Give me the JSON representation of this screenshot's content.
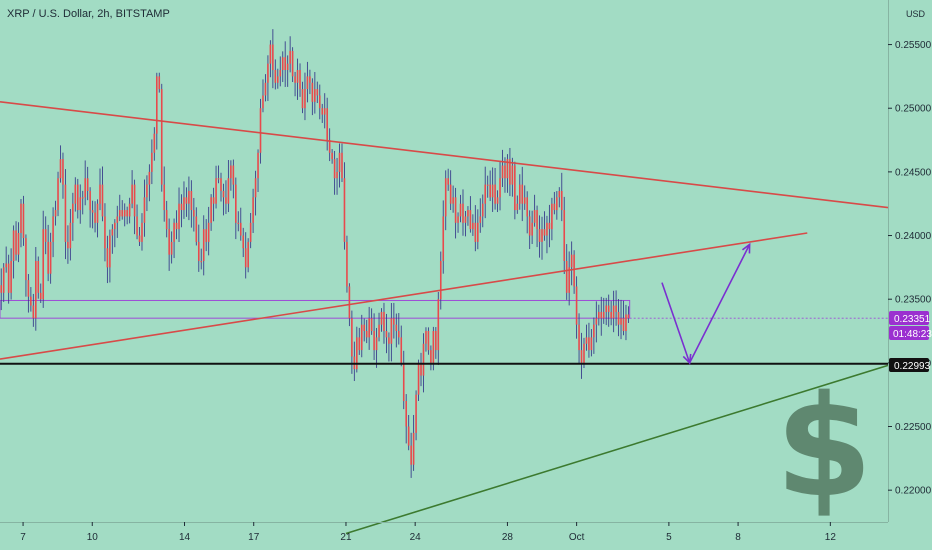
{
  "header": {
    "title": "XRP / U.S. Dollar, 2h, BITSTAMP",
    "currency": "USD"
  },
  "colors": {
    "background": "#a2dcc4",
    "candle": "#e8494c",
    "wick": "#3a3f8c",
    "trendline": "#d84a48",
    "support": "#111111",
    "lower_trend": "#3c7a2f",
    "forecast_arrow": "#7a2fd0",
    "range_box": "#9d4bd6",
    "badge_price": "#9b30d0",
    "badge_level": "#111111",
    "dollar": "#5f8870"
  },
  "icons": {
    "watermark": "dollar-sign-icon"
  },
  "badges": {
    "price": "0.23351",
    "countdown": "01:48:23",
    "level": "0.22993"
  },
  "chart_data": {
    "type": "candlestick",
    "symbol": "XRP / U.S. Dollar",
    "interval": "2h",
    "exchange": "BITSTAMP",
    "ylim": [
      0.2175,
      0.2585
    ],
    "y_ticks": [
      "0.25500",
      "0.25000",
      "0.24500",
      "0.24000",
      "0.23500",
      "0.23000",
      "0.22500",
      "0.22000"
    ],
    "x_ticks": [
      "7",
      "10",
      "14",
      "17",
      "21",
      "24",
      "28",
      "Oct",
      "5",
      "8",
      "12"
    ],
    "x_tick_day_index": [
      1,
      4,
      8,
      11,
      15,
      18,
      22,
      25,
      29,
      32,
      36
    ],
    "last_price": 0.23351,
    "support_level": 0.22993,
    "range_box": {
      "top": 0.2349,
      "bottom": 0.23351,
      "x_start": 0.0,
      "x_end": 27.3
    },
    "trendlines": [
      {
        "name": "upper_descending",
        "x": [
          0.0,
          38.5
        ],
        "y": [
          0.2505,
          0.2422
        ]
      },
      {
        "name": "lower_rising",
        "x": [
          0.0,
          35.0
        ],
        "y": [
          0.2303,
          0.2402
        ]
      },
      {
        "name": "green_rising_support",
        "x": [
          15.0,
          38.5
        ],
        "y": [
          0.2166,
          0.2298
        ]
      }
    ],
    "forecast_path": {
      "x": [
        28.7,
        29.9,
        32.5
      ],
      "y": [
        0.2363,
        0.23,
        0.2393
      ]
    },
    "closes": [
      0.2355,
      0.2375,
      0.2378,
      0.2355,
      0.238,
      0.2404,
      0.2385,
      0.2402,
      0.2425,
      0.2398,
      0.2365,
      0.2352,
      0.2345,
      0.2335,
      0.238,
      0.2355,
      0.235,
      0.2405,
      0.2395,
      0.237,
      0.2395,
      0.2415,
      0.242,
      0.2445,
      0.246,
      0.244,
      0.2395,
      0.239,
      0.241,
      0.2425,
      0.244,
      0.242,
      0.243,
      0.243,
      0.2445,
      0.2435,
      0.242,
      0.2418,
      0.241,
      0.2425,
      0.244,
      0.2415,
      0.239,
      0.2375,
      0.24,
      0.2405,
      0.241,
      0.2415,
      0.242,
      0.2415,
      0.242,
      0.2415,
      0.2425,
      0.244,
      0.2415,
      0.24,
      0.2395,
      0.241,
      0.243,
      0.244,
      0.245,
      0.2465,
      0.248,
      0.2525,
      0.2515,
      0.244,
      0.242,
      0.2405,
      0.2385,
      0.2395,
      0.241,
      0.2405,
      0.2425,
      0.242,
      0.243,
      0.2425,
      0.2435,
      0.242,
      0.2415,
      0.2395,
      0.238,
      0.238,
      0.2405,
      0.2395,
      0.241,
      0.243,
      0.2425,
      0.2445,
      0.2445,
      0.2435,
      0.243,
      0.2425,
      0.2445,
      0.2455,
      0.244,
      0.241,
      0.241,
      0.24,
      0.239,
      0.2375,
      0.2395,
      0.241,
      0.243,
      0.2445,
      0.2465,
      0.25,
      0.251,
      0.252,
      0.2535,
      0.255,
      0.253,
      0.252,
      0.2525,
      0.253,
      0.254,
      0.253,
      0.2535,
      0.2545,
      0.2525,
      0.252,
      0.253,
      0.2515,
      0.25,
      0.2515,
      0.2525,
      0.252,
      0.2505,
      0.2515,
      0.251,
      0.25,
      0.2495,
      0.25,
      0.2475,
      0.2465,
      0.246,
      0.2445,
      0.245,
      0.2465,
      0.2445,
      0.2395,
      0.236,
      0.2335,
      0.2305,
      0.2295,
      0.232,
      0.231,
      0.233,
      0.2325,
      0.232,
      0.2335,
      0.2325,
      0.231,
      0.232,
      0.233,
      0.234,
      0.2325,
      0.232,
      0.2315,
      0.2335,
      0.233,
      0.2325,
      0.232,
      0.23,
      0.227,
      0.225,
      0.2235,
      0.222,
      0.2245,
      0.2275,
      0.23,
      0.229,
      0.2315,
      0.2325,
      0.231,
      0.23,
      0.2325,
      0.231,
      0.235,
      0.238,
      0.2415,
      0.2445,
      0.244,
      0.2425,
      0.243,
      0.241,
      0.2415,
      0.2425,
      0.241,
      0.2415,
      0.242,
      0.2405,
      0.241,
      0.2395,
      0.241,
      0.2415,
      0.2425,
      0.244,
      0.244,
      0.243,
      0.244,
      0.2425,
      0.243,
      0.2445,
      0.2455,
      0.2445,
      0.246,
      0.244,
      0.2455,
      0.242,
      0.2425,
      0.244,
      0.2425,
      0.243,
      0.2415,
      0.24,
      0.241,
      0.242,
      0.2405,
      0.2395,
      0.2405,
      0.24,
      0.241,
      0.2405,
      0.2425,
      0.242,
      0.243,
      0.2435,
      0.242,
      0.238,
      0.2355,
      0.2375,
      0.2385,
      0.236,
      0.233,
      0.231,
      0.23,
      0.2315,
      0.232,
      0.231,
      0.232,
      0.233,
      0.2335,
      0.234,
      0.2335,
      0.234,
      0.2345,
      0.234,
      0.2335,
      0.2345,
      0.234,
      0.233,
      0.2335,
      0.2325,
      0.2338,
      0.2335
    ]
  }
}
